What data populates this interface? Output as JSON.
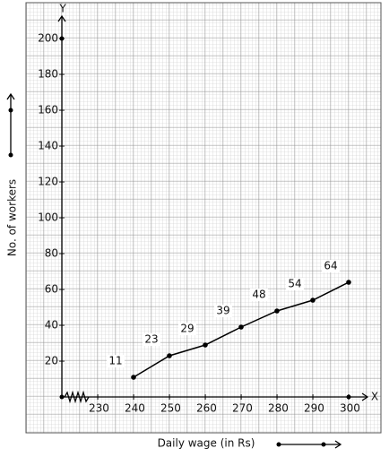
{
  "chart_data": {
    "type": "line",
    "x_axis_label": "Daily wage (in Rs)",
    "y_axis_label": "No. of workers",
    "x_axis_letter": "X",
    "y_axis_letter": "Y",
    "x": [
      240,
      250,
      260,
      270,
      280,
      290,
      300
    ],
    "values": [
      11,
      23,
      29,
      39,
      48,
      54,
      64
    ],
    "color": "#000000",
    "xlim": [
      220,
      305
    ],
    "xticks": [
      230,
      240,
      250,
      260,
      270,
      280,
      290,
      300
    ],
    "ylim": [
      0,
      210
    ],
    "yticks": [
      20,
      40,
      60,
      80,
      100,
      120,
      140,
      160,
      180,
      200
    ],
    "grid": true
  }
}
